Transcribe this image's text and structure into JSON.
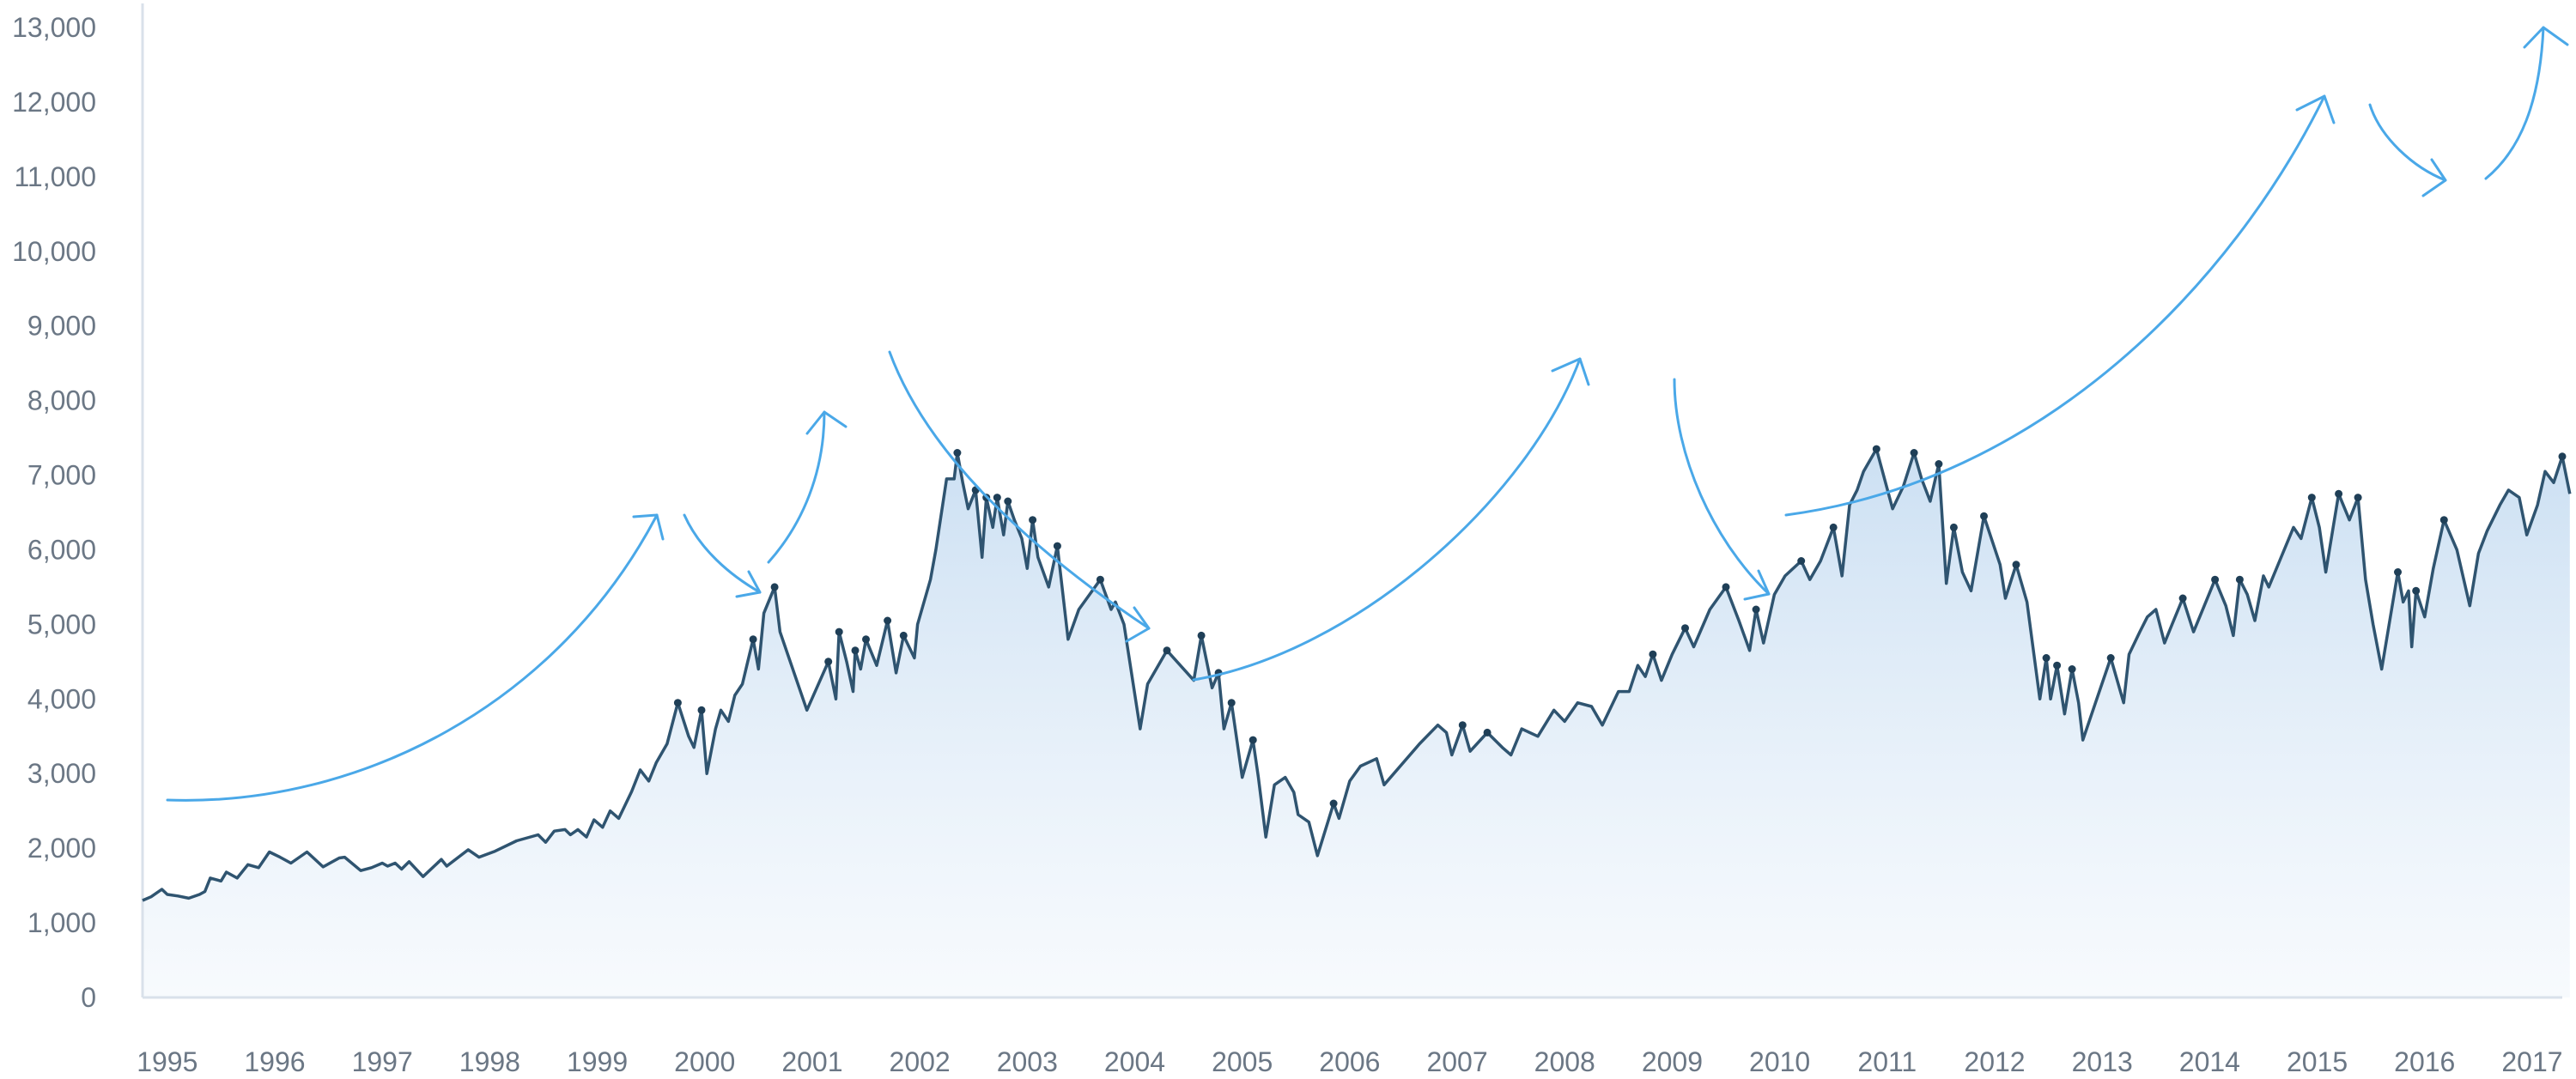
{
  "chart_data": {
    "type": "area",
    "title": "",
    "xlabel": "",
    "ylabel": "",
    "xlim": [
      1994.77,
      2017.28
    ],
    "ylim": [
      0,
      13000
    ],
    "grid": false,
    "x_tick_labels": [
      "1995",
      "1996",
      "1997",
      "1998",
      "1999",
      "2000",
      "2001",
      "2002",
      "2003",
      "2004",
      "2005",
      "2006",
      "2007",
      "2008",
      "2009",
      "2010",
      "2011",
      "2012",
      "2013",
      "2014",
      "2015",
      "2016",
      "2017"
    ],
    "x_ticks": [
      1995,
      1996,
      1997,
      1998,
      1999,
      2000,
      2001,
      2002,
      2003,
      2004,
      2005,
      2006,
      2007,
      2008,
      2009,
      2010,
      2011,
      2012,
      2013,
      2014,
      2015,
      2016,
      2017
    ],
    "y_tick_labels": [
      "0",
      "1,000",
      "2,000",
      "3,000",
      "4,000",
      "5,000",
      "6,000",
      "7,000",
      "8,000",
      "9,000",
      "10,000",
      "11,000",
      "12,000",
      "13,000"
    ],
    "y_ticks": [
      0,
      1000,
      2000,
      3000,
      4000,
      5000,
      6000,
      7000,
      8000,
      9000,
      10000,
      11000,
      12000,
      13000
    ],
    "series": [
      {
        "points": [
          [
            1994.77,
            1300
          ],
          [
            1994.85,
            1350
          ],
          [
            1994.95,
            1450
          ],
          [
            1995.0,
            1380
          ],
          [
            1995.1,
            1360
          ],
          [
            1995.2,
            1330
          ],
          [
            1995.3,
            1380
          ],
          [
            1995.35,
            1420
          ],
          [
            1995.4,
            1600
          ],
          [
            1995.5,
            1560
          ],
          [
            1995.55,
            1680
          ],
          [
            1995.65,
            1600
          ],
          [
            1995.75,
            1780
          ],
          [
            1995.85,
            1740
          ],
          [
            1995.95,
            1950
          ],
          [
            1996.05,
            1880
          ],
          [
            1996.15,
            1800
          ],
          [
            1996.3,
            1950
          ],
          [
            1996.45,
            1750
          ],
          [
            1996.6,
            1870
          ],
          [
            1996.65,
            1880
          ],
          [
            1996.8,
            1700
          ],
          [
            1996.9,
            1740
          ],
          [
            1997.0,
            1800
          ],
          [
            1997.05,
            1760
          ],
          [
            1997.12,
            1800
          ],
          [
            1997.18,
            1720
          ],
          [
            1997.25,
            1820
          ],
          [
            1997.38,
            1620
          ],
          [
            1997.55,
            1850
          ],
          [
            1997.6,
            1760
          ],
          [
            1997.8,
            1980
          ],
          [
            1997.9,
            1880
          ],
          [
            1998.05,
            1960
          ],
          [
            1998.25,
            2100
          ],
          [
            1998.45,
            2180
          ],
          [
            1998.52,
            2080
          ],
          [
            1998.6,
            2230
          ],
          [
            1998.7,
            2250
          ],
          [
            1998.75,
            2180
          ],
          [
            1998.82,
            2250
          ],
          [
            1998.9,
            2150
          ],
          [
            1998.97,
            2380
          ],
          [
            1999.05,
            2280
          ],
          [
            1999.12,
            2500
          ],
          [
            1999.2,
            2400
          ],
          [
            1999.32,
            2760
          ],
          [
            1999.4,
            3050
          ],
          [
            1999.48,
            2900
          ],
          [
            1999.55,
            3150
          ],
          [
            1999.65,
            3400
          ],
          [
            1999.75,
            3950
          ],
          [
            1999.85,
            3500
          ],
          [
            1999.9,
            3350
          ],
          [
            1999.97,
            3850
          ],
          [
            2000.02,
            3000
          ],
          [
            2000.1,
            3600
          ],
          [
            2000.15,
            3850
          ],
          [
            2000.22,
            3700
          ],
          [
            2000.28,
            4050
          ],
          [
            2000.35,
            4200
          ],
          [
            2000.4,
            4500
          ],
          [
            2000.45,
            4800
          ],
          [
            2000.5,
            4400
          ],
          [
            2000.55,
            5150
          ],
          [
            2000.65,
            5500
          ],
          [
            2000.7,
            4900
          ],
          [
            2000.95,
            3850
          ],
          [
            2001.15,
            4500
          ],
          [
            2001.22,
            4000
          ],
          [
            2001.25,
            4900
          ],
          [
            2001.32,
            4500
          ],
          [
            2001.38,
            4100
          ],
          [
            2001.4,
            4650
          ],
          [
            2001.45,
            4400
          ],
          [
            2001.5,
            4800
          ],
          [
            2001.6,
            4450
          ],
          [
            2001.7,
            5050
          ],
          [
            2001.78,
            4350
          ],
          [
            2001.85,
            4850
          ],
          [
            2001.95,
            4550
          ],
          [
            2001.98,
            5000
          ],
          [
            2002.1,
            5600
          ],
          [
            2002.15,
            6000
          ],
          [
            2002.25,
            6950
          ],
          [
            2002.32,
            6950
          ],
          [
            2002.35,
            7300
          ],
          [
            2002.4,
            6900
          ],
          [
            2002.45,
            6550
          ],
          [
            2002.52,
            6800
          ],
          [
            2002.58,
            5900
          ],
          [
            2002.62,
            6700
          ],
          [
            2002.68,
            6300
          ],
          [
            2002.72,
            6700
          ],
          [
            2002.78,
            6200
          ],
          [
            2002.82,
            6650
          ],
          [
            2002.88,
            6400
          ],
          [
            2002.95,
            6150
          ],
          [
            2003.0,
            5750
          ],
          [
            2003.05,
            6400
          ],
          [
            2003.1,
            5900
          ],
          [
            2003.2,
            5500
          ],
          [
            2003.28,
            6050
          ],
          [
            2003.38,
            4800
          ],
          [
            2003.48,
            5200
          ],
          [
            2003.58,
            5400
          ],
          [
            2003.68,
            5600
          ],
          [
            2003.78,
            5200
          ],
          [
            2003.82,
            5300
          ],
          [
            2003.9,
            5000
          ],
          [
            2004.05,
            3600
          ],
          [
            2004.12,
            4200
          ],
          [
            2004.3,
            4650
          ],
          [
            2004.55,
            4250
          ],
          [
            2004.62,
            4850
          ],
          [
            2004.72,
            4150
          ],
          [
            2004.78,
            4350
          ],
          [
            2004.83,
            3600
          ],
          [
            2004.9,
            3950
          ],
          [
            2005.0,
            2950
          ],
          [
            2005.1,
            3450
          ],
          [
            2005.15,
            2950
          ],
          [
            2005.22,
            2150
          ],
          [
            2005.3,
            2850
          ],
          [
            2005.4,
            2950
          ],
          [
            2005.48,
            2750
          ],
          [
            2005.52,
            2450
          ],
          [
            2005.62,
            2350
          ],
          [
            2005.7,
            1900
          ],
          [
            2005.85,
            2600
          ],
          [
            2005.9,
            2400
          ],
          [
            2006.0,
            2900
          ],
          [
            2006.1,
            3100
          ],
          [
            2006.25,
            3200
          ],
          [
            2006.32,
            2850
          ],
          [
            2006.65,
            3400
          ],
          [
            2006.82,
            3650
          ],
          [
            2006.9,
            3550
          ],
          [
            2006.95,
            3250
          ],
          [
            2007.05,
            3650
          ],
          [
            2007.12,
            3300
          ],
          [
            2007.28,
            3550
          ],
          [
            2007.42,
            3350
          ],
          [
            2007.5,
            3250
          ],
          [
            2007.6,
            3600
          ],
          [
            2007.75,
            3500
          ],
          [
            2007.9,
            3850
          ],
          [
            2008.0,
            3700
          ],
          [
            2008.12,
            3950
          ],
          [
            2008.25,
            3900
          ],
          [
            2008.35,
            3650
          ],
          [
            2008.5,
            4100
          ],
          [
            2008.6,
            4100
          ],
          [
            2008.68,
            4450
          ],
          [
            2008.75,
            4300
          ],
          [
            2008.82,
            4600
          ],
          [
            2008.9,
            4250
          ],
          [
            2009.0,
            4600
          ],
          [
            2009.12,
            4950
          ],
          [
            2009.2,
            4700
          ],
          [
            2009.35,
            5200
          ],
          [
            2009.5,
            5500
          ],
          [
            2009.62,
            5050
          ],
          [
            2009.72,
            4650
          ],
          [
            2009.78,
            5200
          ],
          [
            2009.85,
            4750
          ],
          [
            2009.95,
            5400
          ],
          [
            2010.05,
            5650
          ],
          [
            2010.2,
            5850
          ],
          [
            2010.28,
            5600
          ],
          [
            2010.38,
            5850
          ],
          [
            2010.5,
            6300
          ],
          [
            2010.58,
            5650
          ],
          [
            2010.65,
            6600
          ],
          [
            2010.72,
            6800
          ],
          [
            2010.78,
            7050
          ],
          [
            2010.82,
            7150
          ],
          [
            2010.9,
            7350
          ],
          [
            2011.05,
            6550
          ],
          [
            2011.15,
            6850
          ],
          [
            2011.25,
            7300
          ],
          [
            2011.32,
            6950
          ],
          [
            2011.4,
            6650
          ],
          [
            2011.48,
            7150
          ],
          [
            2011.55,
            5550
          ],
          [
            2011.62,
            6300
          ],
          [
            2011.7,
            5700
          ],
          [
            2011.78,
            5450
          ],
          [
            2011.9,
            6450
          ],
          [
            2012.05,
            5800
          ],
          [
            2012.1,
            5350
          ],
          [
            2012.2,
            5800
          ],
          [
            2012.3,
            5300
          ],
          [
            2012.42,
            4000
          ],
          [
            2012.48,
            4550
          ],
          [
            2012.52,
            4000
          ],
          [
            2012.58,
            4450
          ],
          [
            2012.65,
            3800
          ],
          [
            2012.72,
            4400
          ],
          [
            2012.78,
            3950
          ],
          [
            2012.82,
            3450
          ],
          [
            2012.95,
            4000
          ],
          [
            2013.08,
            4550
          ],
          [
            2013.2,
            3950
          ],
          [
            2013.25,
            4600
          ],
          [
            2013.35,
            4900
          ],
          [
            2013.42,
            5100
          ],
          [
            2013.5,
            5200
          ],
          [
            2013.58,
            4750
          ],
          [
            2013.65,
            5000
          ],
          [
            2013.75,
            5350
          ],
          [
            2013.85,
            4900
          ],
          [
            2013.95,
            5250
          ],
          [
            2014.05,
            5600
          ],
          [
            2014.15,
            5250
          ],
          [
            2014.22,
            4850
          ],
          [
            2014.28,
            5600
          ],
          [
            2014.35,
            5400
          ],
          [
            2014.42,
            5050
          ],
          [
            2014.5,
            5650
          ],
          [
            2014.55,
            5500
          ],
          [
            2014.65,
            5850
          ],
          [
            2014.78,
            6300
          ],
          [
            2014.85,
            6150
          ],
          [
            2014.95,
            6700
          ],
          [
            2015.02,
            6300
          ],
          [
            2015.08,
            5700
          ],
          [
            2015.2,
            6750
          ],
          [
            2015.3,
            6400
          ],
          [
            2015.38,
            6700
          ],
          [
            2015.45,
            5600
          ],
          [
            2015.52,
            5000
          ],
          [
            2015.6,
            4400
          ],
          [
            2015.75,
            5700
          ],
          [
            2015.8,
            5300
          ],
          [
            2015.85,
            5450
          ],
          [
            2015.88,
            4700
          ],
          [
            2015.92,
            5450
          ],
          [
            2016.0,
            5100
          ],
          [
            2016.08,
            5750
          ],
          [
            2016.18,
            6400
          ],
          [
            2016.3,
            6000
          ],
          [
            2016.42,
            5250
          ],
          [
            2016.5,
            5950
          ],
          [
            2016.58,
            6250
          ],
          [
            2016.7,
            6600
          ],
          [
            2016.78,
            6800
          ],
          [
            2016.88,
            6700
          ],
          [
            2016.95,
            6200
          ],
          [
            2017.05,
            6600
          ],
          [
            2017.12,
            7050
          ],
          [
            2017.2,
            6900
          ],
          [
            2017.28,
            7250
          ],
          [
            2017.35,
            6750
          ]
        ]
      }
    ]
  }
}
